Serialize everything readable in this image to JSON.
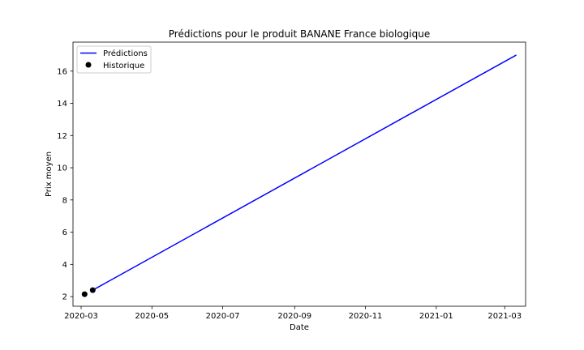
{
  "chart_data": {
    "type": "line",
    "title": "Prédictions pour le produit BANANE France biologique",
    "xlabel": "Date",
    "ylabel": "Prix moyen",
    "x_tick_labels": [
      "2020-03",
      "2020-05",
      "2020-07",
      "2020-09",
      "2020-11",
      "2021-01",
      "2021-03"
    ],
    "x_tick_dates": [
      "2020-03-01",
      "2020-05-01",
      "2020-07-01",
      "2020-09-01",
      "2020-11-01",
      "2021-01-01",
      "2021-03-01"
    ],
    "y_ticks": [
      2,
      4,
      6,
      8,
      10,
      12,
      14,
      16
    ],
    "xlim": [
      "2020-02-23",
      "2021-03-19"
    ],
    "ylim": [
      1.4,
      17.8
    ],
    "grid": false,
    "legend_position": "upper-left",
    "series": [
      {
        "name": "Prédictions",
        "kind": "line",
        "color": "#0000ff",
        "x": [
          "2020-03-11",
          "2021-03-11"
        ],
        "y": [
          2.4,
          17.0
        ]
      },
      {
        "name": "Historique",
        "kind": "scatter",
        "color": "#000000",
        "x": [
          "2020-03-04",
          "2020-03-11"
        ],
        "y": [
          2.15,
          2.4
        ]
      }
    ]
  }
}
